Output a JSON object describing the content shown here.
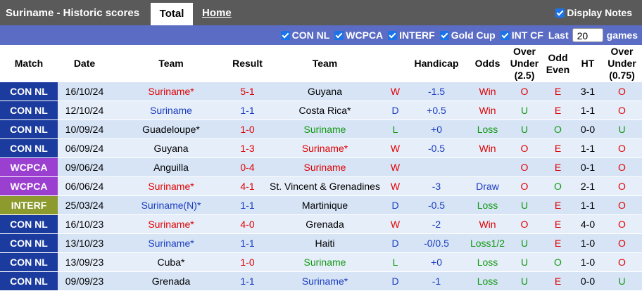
{
  "header": {
    "title": "Suriname - Historic scores",
    "tabs": [
      "Total",
      "Home"
    ],
    "display_notes": "Display Notes"
  },
  "filters": {
    "items": [
      "CON NL",
      "WCPCA",
      "INTERF",
      "Gold Cup",
      "INT CF"
    ],
    "last_label": "Last",
    "last_value": "20",
    "games_label": "games"
  },
  "table": {
    "columns": [
      "Match",
      "Date",
      "Team",
      "Result",
      "Team",
      "",
      "Handicap",
      "Odds",
      "Over Under (2.5)",
      "Odd Even",
      "HT",
      "Over Under (0.75)"
    ],
    "color_map": {
      "wl": {
        "W": "#e00000",
        "D": "#1a3cc0",
        "L": "#119911"
      },
      "odds": {
        "Win": "#e00000",
        "Draw": "#1a3cc0",
        "Loss": "#119911",
        "Loss1/2": "#119911"
      },
      "ou": {
        "O": "#e00000",
        "U": "#119911"
      },
      "oe": {
        "E": "#e00000",
        "O": "#119911"
      },
      "ou075": {
        "O": "#e00000",
        "U": "#119911"
      }
    },
    "rows": [
      {
        "match": "CON NL",
        "match_color": "#1b3c9e",
        "date": "16/10/24",
        "home": "Suriname*",
        "home_color": "#e00000",
        "result": "5-1",
        "result_color": "#e00000",
        "away": "Guyana",
        "away_color": "#000000",
        "wl": "W",
        "handicap": "-1.5",
        "odds": "Win",
        "ou": "O",
        "oe": "E",
        "ht": "3-1",
        "ou075": "O"
      },
      {
        "match": "CON NL",
        "match_color": "#1b3c9e",
        "date": "12/10/24",
        "home": "Suriname",
        "home_color": "#1a3cc0",
        "result": "1-1",
        "result_color": "#1a3cc0",
        "away": "Costa Rica*",
        "away_color": "#000000",
        "wl": "D",
        "handicap": "+0.5",
        "odds": "Win",
        "ou": "U",
        "oe": "E",
        "ht": "1-1",
        "ou075": "O"
      },
      {
        "match": "CON NL",
        "match_color": "#1b3c9e",
        "date": "10/09/24",
        "home": "Guadeloupe*",
        "home_color": "#000000",
        "result": "1-0",
        "result_color": "#e00000",
        "away": "Suriname",
        "away_color": "#119911",
        "wl": "L",
        "handicap": "+0",
        "odds": "Loss",
        "ou": "U",
        "oe": "O",
        "ht": "0-0",
        "ou075": "U"
      },
      {
        "match": "CON NL",
        "match_color": "#1b3c9e",
        "date": "06/09/24",
        "home": "Guyana",
        "home_color": "#000000",
        "result": "1-3",
        "result_color": "#e00000",
        "away": "Suriname*",
        "away_color": "#e00000",
        "wl": "W",
        "handicap": "-0.5",
        "odds": "Win",
        "ou": "O",
        "oe": "E",
        "ht": "1-1",
        "ou075": "O"
      },
      {
        "match": "WCPCA",
        "match_color": "#9a3fd0",
        "date": "09/06/24",
        "home": "Anguilla",
        "home_color": "#000000",
        "result": "0-4",
        "result_color": "#e00000",
        "away": "Suriname",
        "away_color": "#e00000",
        "wl": "W",
        "handicap": null,
        "odds": null,
        "ou": "O",
        "oe": "E",
        "ht": "0-1",
        "ou075": "O"
      },
      {
        "match": "WCPCA",
        "match_color": "#9a3fd0",
        "date": "06/06/24",
        "home": "Suriname*",
        "home_color": "#e00000",
        "result": "4-1",
        "result_color": "#e00000",
        "away": "St. Vincent & Grenadines",
        "away_color": "#000000",
        "wl": "W",
        "handicap": "-3",
        "odds": "Draw",
        "ou": "O",
        "oe": "O",
        "ht": "2-1",
        "ou075": "O"
      },
      {
        "match": "INTERF",
        "match_color": "#8d9a2e",
        "date": "25/03/24",
        "home": "Suriname(N)*",
        "home_color": "#1a3cc0",
        "result": "1-1",
        "result_color": "#1a3cc0",
        "away": "Martinique",
        "away_color": "#000000",
        "wl": "D",
        "handicap": "-0.5",
        "odds": "Loss",
        "ou": "U",
        "oe": "E",
        "ht": "1-1",
        "ou075": "O"
      },
      {
        "match": "CON NL",
        "match_color": "#1b3c9e",
        "date": "16/10/23",
        "home": "Suriname*",
        "home_color": "#e00000",
        "result": "4-0",
        "result_color": "#e00000",
        "away": "Grenada",
        "away_color": "#000000",
        "wl": "W",
        "handicap": "-2",
        "odds": "Win",
        "ou": "O",
        "oe": "E",
        "ht": "4-0",
        "ou075": "O"
      },
      {
        "match": "CON NL",
        "match_color": "#1b3c9e",
        "date": "13/10/23",
        "home": "Suriname*",
        "home_color": "#1a3cc0",
        "result": "1-1",
        "result_color": "#1a3cc0",
        "away": "Haiti",
        "away_color": "#000000",
        "wl": "D",
        "handicap": "-0/0.5",
        "odds": "Loss1/2",
        "ou": "U",
        "oe": "E",
        "ht": "1-0",
        "ou075": "O"
      },
      {
        "match": "CON NL",
        "match_color": "#1b3c9e",
        "date": "13/09/23",
        "home": "Cuba*",
        "home_color": "#000000",
        "result": "1-0",
        "result_color": "#e00000",
        "away": "Suriname",
        "away_color": "#119911",
        "wl": "L",
        "handicap": "+0",
        "odds": "Loss",
        "ou": "U",
        "oe": "O",
        "ht": "1-0",
        "ou075": "O"
      },
      {
        "match": "CON NL",
        "match_color": "#1b3c9e",
        "date": "09/09/23",
        "home": "Grenada",
        "home_color": "#000000",
        "result": "1-1",
        "result_color": "#1a3cc0",
        "away": "Suriname*",
        "away_color": "#1a3cc0",
        "wl": "D",
        "handicap": "-1",
        "odds": "Loss",
        "ou": "U",
        "oe": "E",
        "ht": "0-0",
        "ou075": "U"
      }
    ]
  }
}
